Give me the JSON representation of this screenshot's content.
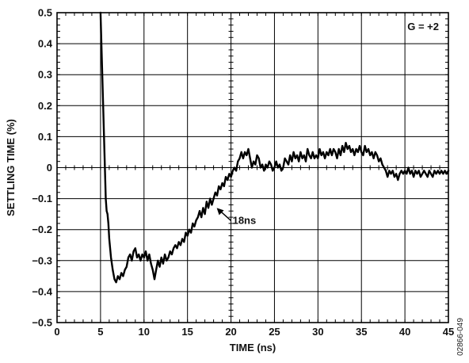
{
  "chart_data": {
    "type": "line",
    "xlabel": "TIME (ns)",
    "ylabel": "SETTLING TIME (%)",
    "xlim": [
      0,
      45
    ],
    "ylim": [
      -0.5,
      0.5
    ],
    "x_ticks": [
      0,
      5,
      10,
      15,
      20,
      25,
      30,
      35,
      40,
      45
    ],
    "x_tick_labels": [
      "0",
      "5",
      "10",
      "15",
      "20",
      "25",
      "30",
      "35",
      "40",
      "45"
    ],
    "y_ticks": [
      0.5,
      0.4,
      0.3,
      0.2,
      0.1,
      0,
      -0.1,
      -0.2,
      -0.3,
      -0.4,
      -0.5
    ],
    "y_tick_labels": [
      "0.5",
      "0.4",
      "0.3",
      "0.2",
      "0.1",
      "0",
      "−0.1",
      "−0.2",
      "−0.3",
      "−0.4",
      "−0.5"
    ],
    "grid": true,
    "gain_label": "G = +2",
    "annotation": {
      "text": "18ns",
      "x": 18,
      "y": -0.12
    },
    "figure_id": "02866-049",
    "series": [
      {
        "color": "#000000",
        "points": [
          [
            5.0,
            0.5
          ],
          [
            5.2,
            0.3
          ],
          [
            5.4,
            0.1
          ],
          [
            5.5,
            0.0
          ],
          [
            5.6,
            -0.1
          ],
          [
            5.7,
            -0.14
          ],
          [
            5.8,
            -0.15
          ],
          [
            5.9,
            -0.18
          ],
          [
            6.0,
            -0.23
          ],
          [
            6.2,
            -0.29
          ],
          [
            6.4,
            -0.33
          ],
          [
            6.6,
            -0.36
          ],
          [
            6.8,
            -0.37
          ],
          [
            7.0,
            -0.35
          ],
          [
            7.2,
            -0.36
          ],
          [
            7.4,
            -0.34
          ],
          [
            7.6,
            -0.35
          ],
          [
            7.8,
            -0.33
          ],
          [
            8.0,
            -0.32
          ],
          [
            8.2,
            -0.29
          ],
          [
            8.4,
            -0.28
          ],
          [
            8.6,
            -0.3
          ],
          [
            8.8,
            -0.27
          ],
          [
            9.0,
            -0.26
          ],
          [
            9.2,
            -0.29
          ],
          [
            9.4,
            -0.28
          ],
          [
            9.6,
            -0.3
          ],
          [
            9.8,
            -0.28
          ],
          [
            10.0,
            -0.29
          ],
          [
            10.2,
            -0.27
          ],
          [
            10.4,
            -0.3
          ],
          [
            10.6,
            -0.28
          ],
          [
            10.8,
            -0.31
          ],
          [
            11.0,
            -0.33
          ],
          [
            11.2,
            -0.36
          ],
          [
            11.4,
            -0.33
          ],
          [
            11.6,
            -0.3
          ],
          [
            11.8,
            -0.32
          ],
          [
            12.0,
            -0.29
          ],
          [
            12.2,
            -0.31
          ],
          [
            12.4,
            -0.28
          ],
          [
            12.6,
            -0.3
          ],
          [
            12.8,
            -0.29
          ],
          [
            13.0,
            -0.27
          ],
          [
            13.2,
            -0.28
          ],
          [
            13.4,
            -0.26
          ],
          [
            13.6,
            -0.25
          ],
          [
            13.8,
            -0.26
          ],
          [
            14.0,
            -0.24
          ],
          [
            14.2,
            -0.25
          ],
          [
            14.4,
            -0.23
          ],
          [
            14.6,
            -0.24
          ],
          [
            14.8,
            -0.21
          ],
          [
            15.0,
            -0.22
          ],
          [
            15.2,
            -0.2
          ],
          [
            15.4,
            -0.21
          ],
          [
            15.6,
            -0.18
          ],
          [
            15.8,
            -0.19
          ],
          [
            16.0,
            -0.17
          ],
          [
            16.2,
            -0.16
          ],
          [
            16.4,
            -0.14
          ],
          [
            16.6,
            -0.16
          ],
          [
            16.8,
            -0.13
          ],
          [
            17.0,
            -0.15
          ],
          [
            17.2,
            -0.11
          ],
          [
            17.4,
            -0.13
          ],
          [
            17.6,
            -0.1
          ],
          [
            17.8,
            -0.12
          ],
          [
            18.0,
            -0.1
          ],
          [
            18.2,
            -0.08
          ],
          [
            18.4,
            -0.09
          ],
          [
            18.6,
            -0.06
          ],
          [
            18.8,
            -0.07
          ],
          [
            19.0,
            -0.05
          ],
          [
            19.2,
            -0.06
          ],
          [
            19.4,
            -0.03
          ],
          [
            19.6,
            -0.04
          ],
          [
            19.8,
            -0.02
          ],
          [
            20.0,
            -0.03
          ],
          [
            20.2,
            -0.01
          ],
          [
            20.4,
            0.0
          ],
          [
            20.6,
            -0.01
          ],
          [
            20.8,
            0.02
          ],
          [
            21.0,
            0.03
          ],
          [
            21.2,
            0.05
          ],
          [
            21.4,
            0.03
          ],
          [
            21.6,
            0.05
          ],
          [
            21.8,
            0.04
          ],
          [
            22.0,
            0.06
          ],
          [
            22.2,
            0.03
          ],
          [
            22.4,
            0.0
          ],
          [
            22.6,
            0.02
          ],
          [
            22.8,
            0.01
          ],
          [
            23.0,
            0.04
          ],
          [
            23.2,
            0.03
          ],
          [
            23.4,
            0.0
          ],
          [
            23.6,
            0.01
          ],
          [
            23.8,
            -0.01
          ],
          [
            24.0,
            0.01
          ],
          [
            24.2,
            0.0
          ],
          [
            24.4,
            0.02
          ],
          [
            24.6,
            0.01
          ],
          [
            24.8,
            -0.01
          ],
          [
            25.0,
            0.0
          ],
          [
            25.2,
            0.02
          ],
          [
            25.4,
            0.0
          ],
          [
            25.6,
            0.01
          ],
          [
            25.8,
            -0.01
          ],
          [
            26.0,
            0.0
          ],
          [
            26.2,
            0.03
          ],
          [
            26.4,
            0.02
          ],
          [
            26.6,
            0.01
          ],
          [
            26.8,
            0.04
          ],
          [
            27.0,
            0.02
          ],
          [
            27.2,
            0.05
          ],
          [
            27.4,
            0.03
          ],
          [
            27.6,
            0.04
          ],
          [
            27.8,
            0.02
          ],
          [
            28.0,
            0.05
          ],
          [
            28.2,
            0.03
          ],
          [
            28.4,
            0.04
          ],
          [
            28.6,
            0.02
          ],
          [
            28.8,
            0.06
          ],
          [
            29.0,
            0.04
          ],
          [
            29.2,
            0.03
          ],
          [
            29.4,
            0.05
          ],
          [
            29.6,
            0.03
          ],
          [
            29.8,
            0.04
          ],
          [
            30.0,
            0.03
          ],
          [
            30.2,
            0.06
          ],
          [
            30.4,
            0.04
          ],
          [
            30.6,
            0.05
          ],
          [
            30.8,
            0.03
          ],
          [
            31.0,
            0.05
          ],
          [
            31.2,
            0.04
          ],
          [
            31.4,
            0.06
          ],
          [
            31.6,
            0.04
          ],
          [
            31.8,
            0.06
          ],
          [
            32.0,
            0.05
          ],
          [
            32.2,
            0.03
          ],
          [
            32.4,
            0.06
          ],
          [
            32.6,
            0.04
          ],
          [
            32.8,
            0.07
          ],
          [
            33.0,
            0.05
          ],
          [
            33.2,
            0.08
          ],
          [
            33.4,
            0.06
          ],
          [
            33.6,
            0.07
          ],
          [
            33.8,
            0.05
          ],
          [
            34.0,
            0.06
          ],
          [
            34.2,
            0.04
          ],
          [
            34.4,
            0.06
          ],
          [
            34.6,
            0.05
          ],
          [
            34.8,
            0.07
          ],
          [
            35.0,
            0.05
          ],
          [
            35.2,
            0.04
          ],
          [
            35.4,
            0.07
          ],
          [
            35.6,
            0.05
          ],
          [
            35.8,
            0.06
          ],
          [
            36.0,
            0.04
          ],
          [
            36.2,
            0.05
          ],
          [
            36.4,
            0.03
          ],
          [
            36.6,
            0.05
          ],
          [
            36.8,
            0.04
          ],
          [
            37.0,
            0.02
          ],
          [
            37.2,
            0.03
          ],
          [
            37.4,
            0.01
          ],
          [
            37.6,
            0.0
          ],
          [
            37.8,
            -0.01
          ],
          [
            38.0,
            -0.03
          ],
          [
            38.2,
            -0.01
          ],
          [
            38.4,
            -0.02
          ],
          [
            38.6,
            -0.01
          ],
          [
            38.8,
            -0.03
          ],
          [
            39.0,
            -0.02
          ],
          [
            39.2,
            -0.04
          ],
          [
            39.4,
            -0.02
          ],
          [
            39.6,
            -0.01
          ],
          [
            39.8,
            -0.02
          ],
          [
            40.0,
            -0.01
          ],
          [
            40.2,
            -0.02
          ],
          [
            40.4,
            0.0
          ],
          [
            40.6,
            -0.02
          ],
          [
            40.8,
            -0.01
          ],
          [
            41.0,
            -0.03
          ],
          [
            41.2,
            -0.01
          ],
          [
            41.4,
            -0.02
          ],
          [
            41.6,
            -0.01
          ],
          [
            41.8,
            -0.03
          ],
          [
            42.0,
            -0.02
          ],
          [
            42.2,
            -0.01
          ],
          [
            42.4,
            -0.02
          ],
          [
            42.6,
            -0.03
          ],
          [
            42.8,
            -0.01
          ],
          [
            43.0,
            -0.02
          ],
          [
            43.2,
            -0.03
          ],
          [
            43.4,
            -0.01
          ],
          [
            43.6,
            -0.02
          ],
          [
            43.8,
            -0.01
          ],
          [
            44.0,
            -0.02
          ],
          [
            44.2,
            -0.01
          ],
          [
            44.4,
            -0.02
          ],
          [
            44.6,
            -0.01
          ],
          [
            44.8,
            -0.02
          ],
          [
            45.0,
            -0.01
          ]
        ]
      }
    ]
  }
}
